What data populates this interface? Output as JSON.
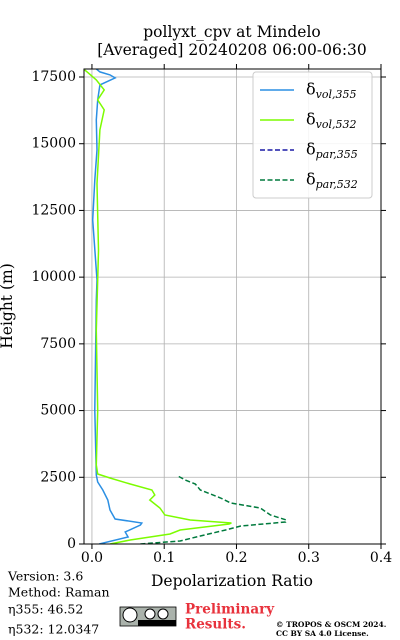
{
  "chart_data": {
    "type": "line",
    "title": [
      "pollyxt_cpv at Mindelo",
      "[Averaged] 20240208 06:00-06:30"
    ],
    "x_label": "Depolarization Ratio",
    "y_label": "Height (m)",
    "xlim": [
      -0.011,
      0.4
    ],
    "ylim": [
      0,
      17800
    ],
    "xticks": [
      {
        "value": 0,
        "label": "0.0"
      },
      0.1,
      0.2,
      0.3,
      0.4
    ],
    "yticks": [
      0,
      2500,
      5000,
      7500,
      10000,
      12500,
      15000,
      17500
    ],
    "grid": true,
    "legend": "upper right",
    "series": [
      {
        "name": "δvol,355",
        "color": "#2b8fe3",
        "dash": false,
        "x": [
          0.01,
          0.05,
          0.046,
          0.067,
          0.069,
          0.032,
          0.025,
          0.022,
          0.015,
          0.008,
          0.006,
          0.004,
          0.006,
          0.007,
          0.001,
          0.004,
          0.007,
          0.006,
          0.008,
          0.011,
          0.032,
          0.025,
          0.011,
          0.006
        ],
        "y": [
          0,
          262,
          450,
          712,
          787,
          937,
          1274,
          1649,
          2024,
          2324,
          2586,
          5022,
          9145,
          9895,
          12144,
          13643,
          14767,
          15892,
          16641,
          17203,
          17466,
          17578,
          17690,
          17803
        ]
      },
      {
        "name": "δvol,532",
        "color": "#7cfc00",
        "dash": false,
        "x": [
          0.025,
          0.053,
          0.108,
          0.122,
          0.19,
          0.193,
          0.136,
          0.101,
          0.094,
          0.08,
          0.087,
          0.083,
          0.053,
          0.025,
          0.008,
          0.006,
          0.008,
          0.006,
          0.009,
          0.007,
          0.011,
          0.017,
          0.008,
          0.017,
          0.006,
          -0.005,
          -0.01
        ],
        "y": [
          0,
          150,
          375,
          525,
          750,
          787,
          900,
          1087,
          1350,
          1649,
          1836,
          2024,
          2249,
          2474,
          2624,
          2961,
          5000,
          8000,
          11000,
          13500,
          15517,
          16267,
          16641,
          17016,
          17391,
          17653,
          17765
        ]
      },
      {
        "name": "δpar,355",
        "color": "#1a1aa6",
        "dash": true,
        "x": [],
        "y": []
      },
      {
        "name": "δpar,532",
        "color": "#007a3d",
        "dash": true,
        "x": [
          0.067,
          0.122,
          0.15,
          0.185,
          0.206,
          0.268,
          0.269,
          0.247,
          0.233,
          0.192,
          0.178,
          0.15,
          0.143,
          0.129,
          0.119
        ],
        "y": [
          0,
          112,
          300,
          525,
          675,
          824,
          900,
          1087,
          1350,
          1537,
          1724,
          2024,
          2249,
          2400,
          2550
        ]
      }
    ],
    "footer": {
      "version": "Version: 3.6",
      "method": "Method: Raman",
      "eta355": "η355:  46.52",
      "eta532": "η532: 12.0347",
      "preliminary": [
        "Preliminary",
        "Results."
      ],
      "copyright": [
        "© TROPOS & OSCM 2024.",
        "CC BY SA 4.0 License."
      ]
    }
  }
}
